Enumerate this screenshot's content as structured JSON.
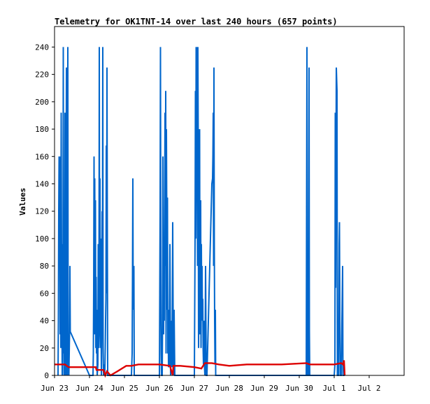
{
  "chart_data": {
    "type": "line",
    "title": "Telemetry for OK1TNT-14 over last 240 hours (657 points)",
    "xlabel": "",
    "ylabel": "Values",
    "x_ticks": [
      "Jun 23",
      "Jun 24",
      "Jun 25",
      "Jun 26",
      "Jun 27",
      "Jun 28",
      "Jun 29",
      "Jun 30",
      "Jul 1",
      "Jul 2"
    ],
    "y_ticks": [
      0,
      20,
      40,
      60,
      80,
      100,
      120,
      140,
      160,
      180,
      200,
      220,
      240
    ],
    "xlim_days": [
      0,
      10
    ],
    "ylim": [
      0,
      255
    ],
    "grid": false,
    "series": [
      {
        "color": "#0066cc",
        "points": [
          [
            0.1,
            0
          ],
          [
            0.11,
            40
          ],
          [
            0.12,
            120
          ],
          [
            0.13,
            160
          ],
          [
            0.14,
            80
          ],
          [
            0.15,
            130
          ],
          [
            0.16,
            30
          ],
          [
            0.17,
            160
          ],
          [
            0.18,
            20
          ],
          [
            0.19,
            192
          ],
          [
            0.2,
            90
          ],
          [
            0.21,
            48
          ],
          [
            0.22,
            0
          ],
          [
            0.23,
            96
          ],
          [
            0.24,
            16
          ],
          [
            0.25,
            240
          ],
          [
            0.26,
            40
          ],
          [
            0.27,
            0
          ],
          [
            0.28,
            48
          ],
          [
            0.29,
            0
          ],
          [
            0.3,
            192
          ],
          [
            0.31,
            48
          ],
          [
            0.32,
            0
          ],
          [
            0.33,
            128
          ],
          [
            0.34,
            225
          ],
          [
            0.35,
            0
          ],
          [
            0.36,
            96
          ],
          [
            0.37,
            64
          ],
          [
            0.38,
            240
          ],
          [
            0.39,
            0
          ],
          [
            0.4,
            20
          ],
          [
            0.41,
            0
          ],
          [
            0.43,
            32
          ],
          [
            0.44,
            80
          ],
          [
            0.45,
            32
          ],
          [
            1.0,
            0
          ],
          [
            1.1,
            0
          ],
          [
            1.11,
            16
          ],
          [
            1.12,
            64
          ],
          [
            1.13,
            160
          ],
          [
            1.14,
            30
          ],
          [
            1.15,
            144
          ],
          [
            1.16,
            40
          ],
          [
            1.17,
            128
          ],
          [
            1.18,
            20
          ],
          [
            1.19,
            72
          ],
          [
            1.2,
            16
          ],
          [
            1.21,
            48
          ],
          [
            1.22,
            0
          ],
          [
            1.24,
            8
          ],
          [
            1.25,
            96
          ],
          [
            1.26,
            20
          ],
          [
            1.27,
            30
          ],
          [
            1.28,
            240
          ],
          [
            1.29,
            40
          ],
          [
            1.3,
            144
          ],
          [
            1.31,
            20
          ],
          [
            1.32,
            100
          ],
          [
            1.33,
            48
          ],
          [
            1.34,
            0
          ],
          [
            1.35,
            30
          ],
          [
            1.36,
            120
          ],
          [
            1.37,
            60
          ],
          [
            1.38,
            240
          ],
          [
            1.39,
            20
          ],
          [
            1.4,
            0
          ],
          [
            1.42,
            8
          ],
          [
            1.43,
            0
          ],
          [
            1.44,
            4
          ],
          [
            1.45,
            20
          ],
          [
            1.46,
            40
          ],
          [
            1.47,
            56
          ],
          [
            1.48,
            168
          ],
          [
            1.49,
            60
          ],
          [
            1.5,
            225
          ],
          [
            1.51,
            112
          ],
          [
            1.52,
            0
          ],
          [
            2.2,
            0
          ],
          [
            2.22,
            16
          ],
          [
            2.23,
            72
          ],
          [
            2.24,
            144
          ],
          [
            2.25,
            48
          ],
          [
            2.26,
            72
          ],
          [
            2.27,
            80
          ],
          [
            2.28,
            0
          ],
          [
            3.0,
            0
          ],
          [
            3.02,
            120
          ],
          [
            3.03,
            240
          ],
          [
            3.04,
            88
          ],
          [
            3.05,
            16
          ],
          [
            3.06,
            0
          ],
          [
            3.08,
            0
          ],
          [
            3.09,
            40
          ],
          [
            3.1,
            160
          ],
          [
            3.11,
            80
          ],
          [
            3.12,
            30
          ],
          [
            3.13,
            90
          ],
          [
            3.14,
            40
          ],
          [
            3.15,
            120
          ],
          [
            3.16,
            192
          ],
          [
            3.17,
            80
          ],
          [
            3.18,
            208
          ],
          [
            3.19,
            16
          ],
          [
            3.2,
            180
          ],
          [
            3.21,
            120
          ],
          [
            3.22,
            48
          ],
          [
            3.23,
            130
          ],
          [
            3.24,
            16
          ],
          [
            3.25,
            48
          ],
          [
            3.26,
            6
          ],
          [
            3.28,
            8
          ],
          [
            3.3,
            96
          ],
          [
            3.32,
            0
          ],
          [
            3.34,
            40
          ],
          [
            3.36,
            6
          ],
          [
            3.38,
            112
          ],
          [
            3.4,
            0
          ],
          [
            3.42,
            48
          ],
          [
            3.44,
            0
          ],
          [
            4.0,
            0
          ],
          [
            4.02,
            100
          ],
          [
            4.03,
            208
          ],
          [
            4.04,
            100
          ],
          [
            4.05,
            240
          ],
          [
            4.06,
            160
          ],
          [
            4.07,
            240
          ],
          [
            4.08,
            140
          ],
          [
            4.09,
            80
          ],
          [
            4.1,
            240
          ],
          [
            4.11,
            176
          ],
          [
            4.12,
            20
          ],
          [
            4.13,
            96
          ],
          [
            4.14,
            40
          ],
          [
            4.15,
            180
          ],
          [
            4.16,
            30
          ],
          [
            4.17,
            64
          ],
          [
            4.18,
            128
          ],
          [
            4.19,
            20
          ],
          [
            4.2,
            96
          ],
          [
            4.21,
            48
          ],
          [
            4.22,
            80
          ],
          [
            4.23,
            40
          ],
          [
            4.24,
            56
          ],
          [
            4.25,
            20
          ],
          [
            4.26,
            8
          ],
          [
            4.28,
            40
          ],
          [
            4.29,
            6
          ],
          [
            4.3,
            0
          ],
          [
            4.31,
            32
          ],
          [
            4.32,
            80
          ],
          [
            4.33,
            40
          ],
          [
            4.34,
            0
          ],
          [
            4.36,
            0
          ],
          [
            4.38,
            20
          ],
          [
            4.4,
            40
          ],
          [
            4.42,
            60
          ],
          [
            4.44,
            80
          ],
          [
            4.46,
            100
          ],
          [
            4.48,
            120
          ],
          [
            4.5,
            140
          ],
          [
            4.52,
            144
          ],
          [
            4.53,
            160
          ],
          [
            4.54,
            192
          ],
          [
            4.55,
            80
          ],
          [
            4.56,
            225
          ],
          [
            4.57,
            96
          ],
          [
            4.58,
            40
          ],
          [
            4.59,
            8
          ],
          [
            4.6,
            48
          ],
          [
            4.61,
            0
          ],
          [
            4.62,
            0
          ],
          [
            7.2,
            0
          ],
          [
            7.22,
            240
          ],
          [
            7.23,
            40
          ],
          [
            7.24,
            0
          ],
          [
            7.26,
            0
          ],
          [
            7.28,
            225
          ],
          [
            7.29,
            32
          ],
          [
            7.3,
            0
          ],
          [
            8.0,
            0
          ],
          [
            8.02,
            8
          ],
          [
            8.03,
            192
          ],
          [
            8.04,
            64
          ],
          [
            8.06,
            225
          ],
          [
            8.08,
            208
          ],
          [
            8.09,
            0
          ],
          [
            8.12,
            0
          ],
          [
            8.14,
            96
          ],
          [
            8.15,
            112
          ],
          [
            8.16,
            48
          ],
          [
            8.17,
            0
          ],
          [
            8.2,
            0
          ],
          [
            8.22,
            40
          ],
          [
            8.24,
            80
          ],
          [
            8.25,
            0
          ],
          [
            8.3,
            0
          ]
        ]
      },
      {
        "color": "#dd0000",
        "points": [
          [
            0.0,
            8
          ],
          [
            0.3,
            8
          ],
          [
            0.4,
            6
          ],
          [
            1.0,
            6
          ],
          [
            1.18,
            6
          ],
          [
            1.2,
            4
          ],
          [
            1.4,
            4
          ],
          [
            1.45,
            0
          ],
          [
            1.5,
            3
          ],
          [
            1.6,
            0
          ],
          [
            1.8,
            3
          ],
          [
            2.05,
            7
          ],
          [
            2.2,
            7
          ],
          [
            2.4,
            8
          ],
          [
            3.0,
            8
          ],
          [
            3.3,
            7
          ],
          [
            3.38,
            0
          ],
          [
            3.4,
            7
          ],
          [
            3.6,
            7
          ],
          [
            4.0,
            6
          ],
          [
            4.2,
            5
          ],
          [
            4.3,
            9
          ],
          [
            4.5,
            9
          ],
          [
            4.7,
            8
          ],
          [
            5.0,
            7
          ],
          [
            5.5,
            8
          ],
          [
            6.5,
            8
          ],
          [
            7.2,
            9
          ],
          [
            7.3,
            8
          ],
          [
            7.6,
            8
          ],
          [
            8.0,
            8
          ],
          [
            8.2,
            9
          ],
          [
            8.25,
            8
          ],
          [
            8.28,
            11
          ],
          [
            8.3,
            0
          ]
        ]
      }
    ]
  }
}
